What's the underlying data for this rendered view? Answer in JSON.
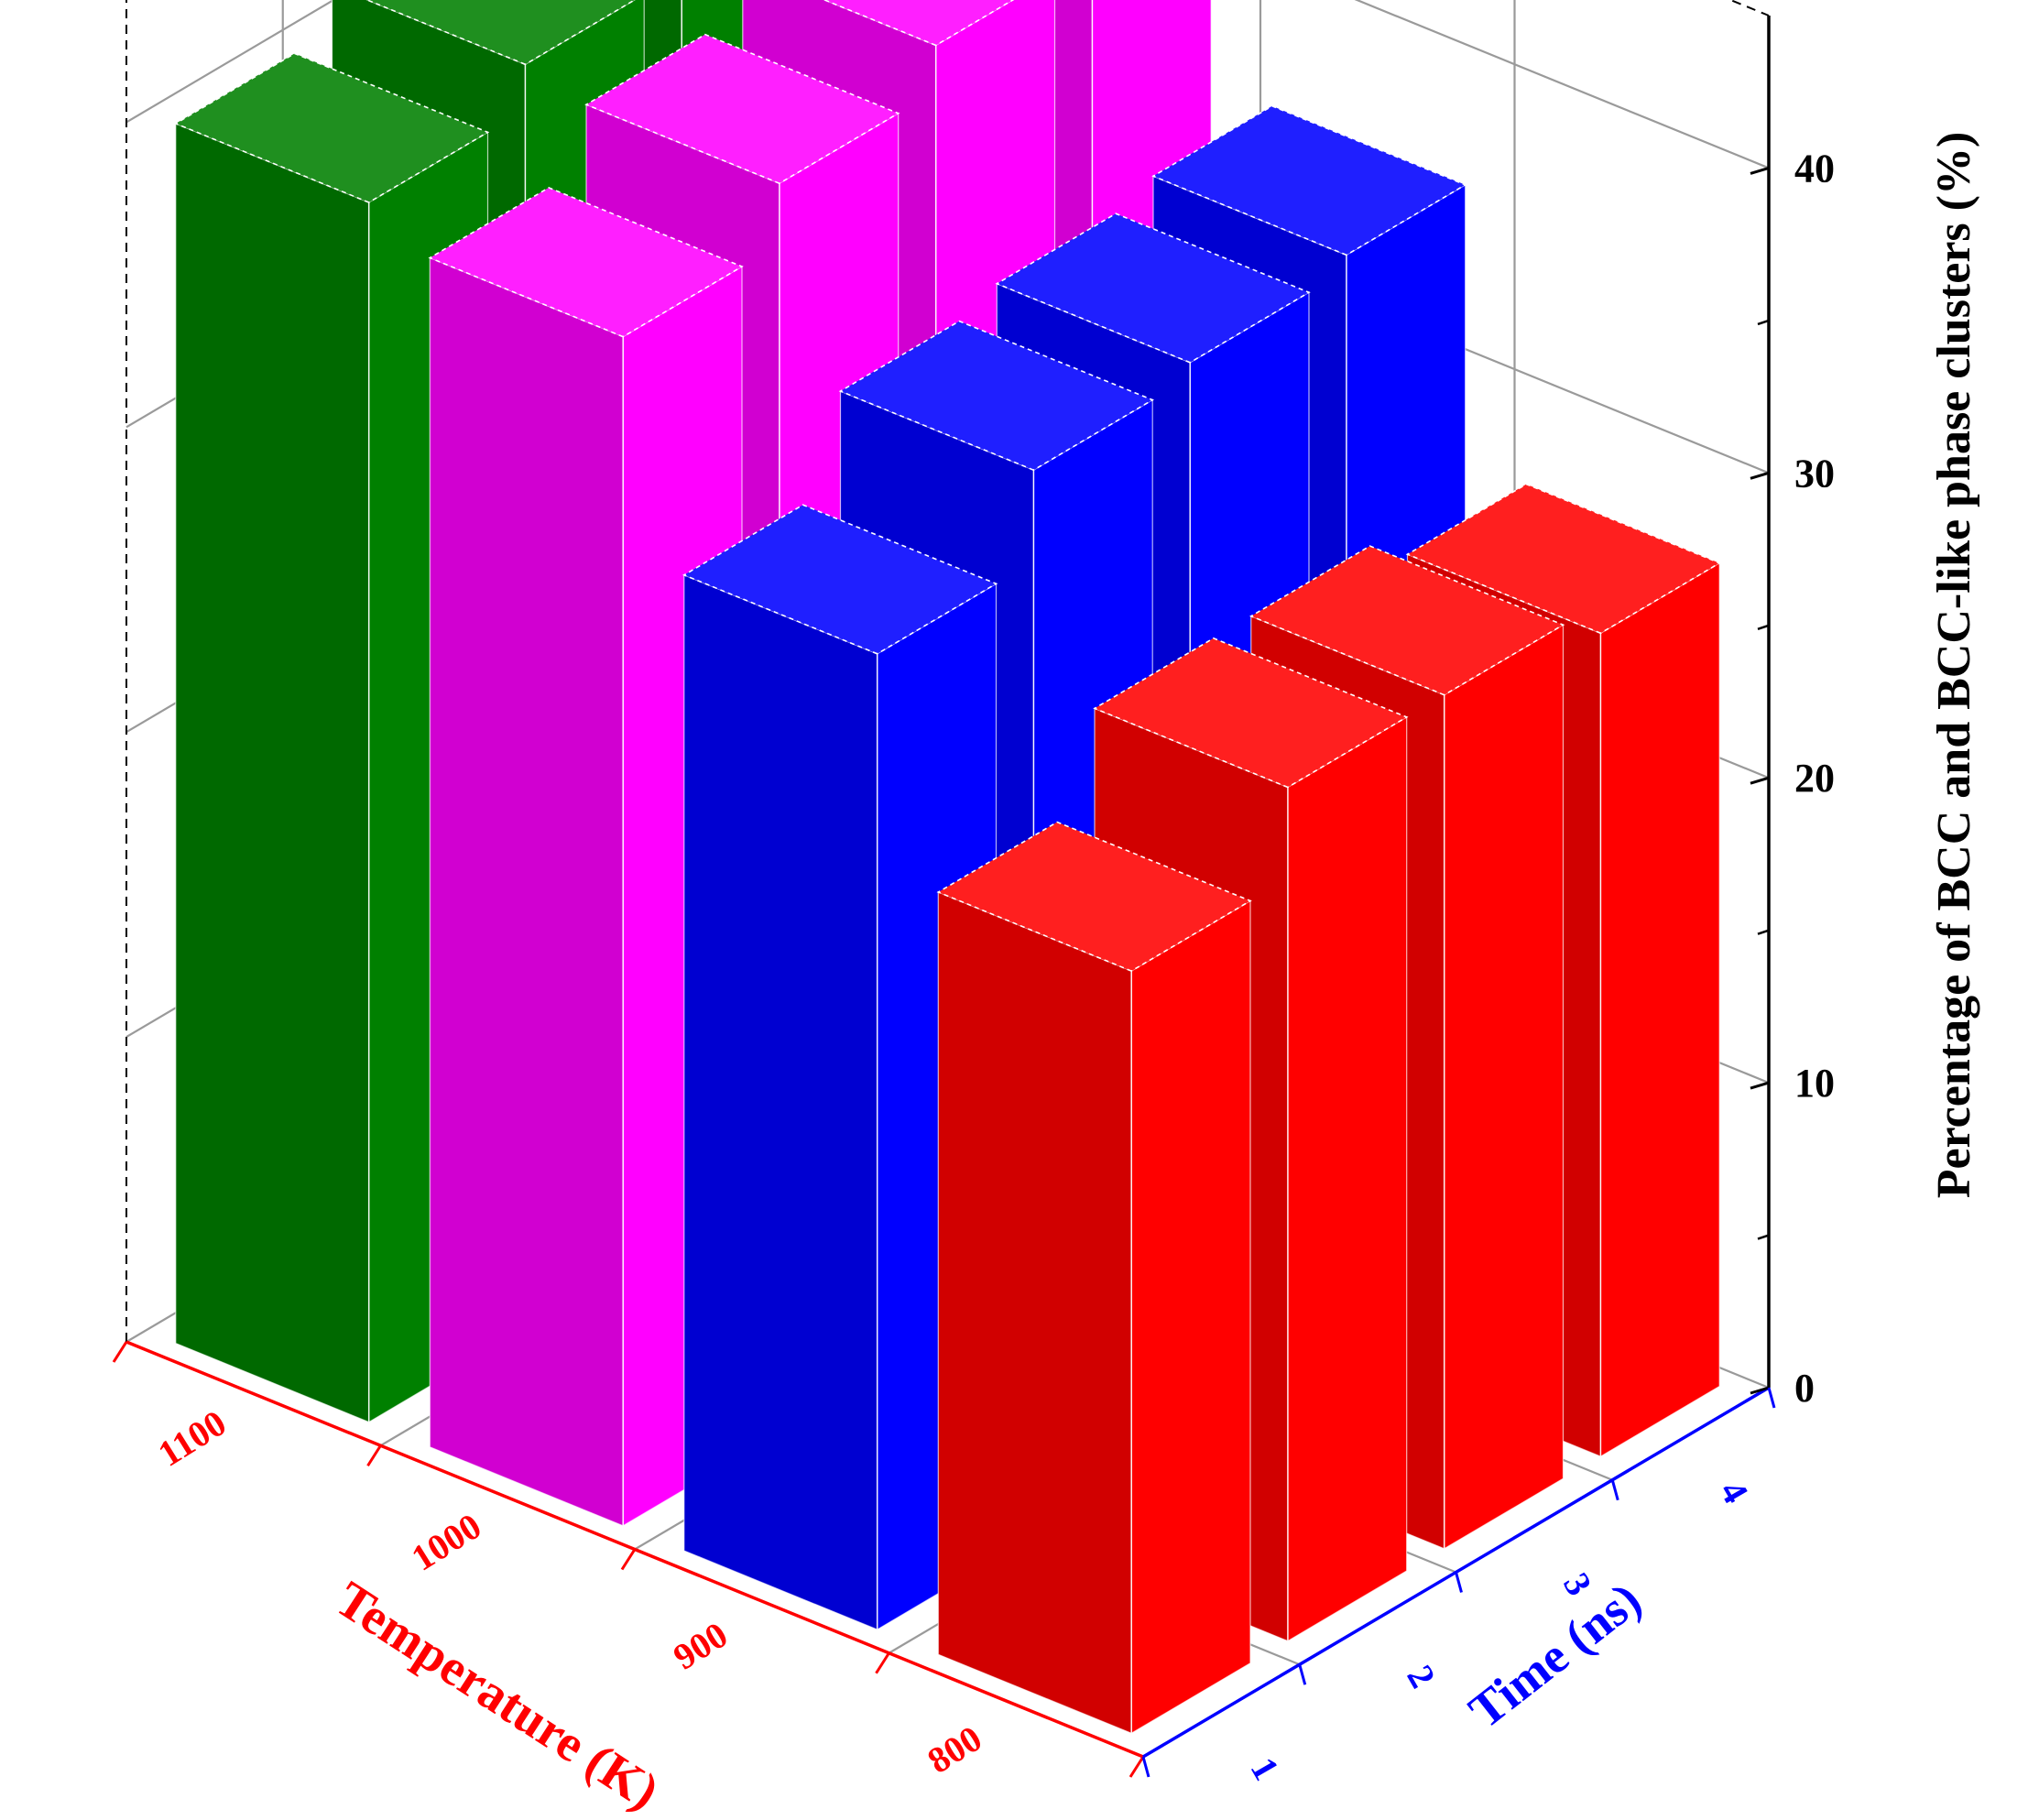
{
  "chart_data": {
    "type": "bar3d",
    "title": "",
    "xlabel": "Temperature (K)",
    "ylabel": "Time (ns)",
    "zlabel": "Percentage of BCC and BCC-like phase clusters (%)",
    "temperature_ticks": [
      "1100",
      "1000",
      "900",
      "800"
    ],
    "time_ticks": [
      "1",
      "2",
      "3",
      "4"
    ],
    "z_ticks": [
      "0",
      "10",
      "20",
      "30",
      "40"
    ],
    "zlim": [
      0,
      45
    ],
    "series": [
      {
        "temperature": "800",
        "color": "#ff0000",
        "values": [
          25.0,
          28.0,
          28.0,
          27.0
        ]
      },
      {
        "temperature": "900",
        "color": "#0000ff",
        "values": [
          32.0,
          35.0,
          35.5,
          36.0
        ]
      },
      {
        "temperature": "1000",
        "color": "#ff00ff",
        "values": [
          39.0,
          41.0,
          42.5,
          42.5
        ]
      },
      {
        "temperature": "1100",
        "color": "#008000",
        "values": [
          40.0,
          41.5,
          42.5,
          44.0
        ]
      }
    ],
    "colors": {
      "temperature_axis": "#ff0000",
      "time_axis": "#0000ff",
      "value_axis": "#000000"
    }
  }
}
